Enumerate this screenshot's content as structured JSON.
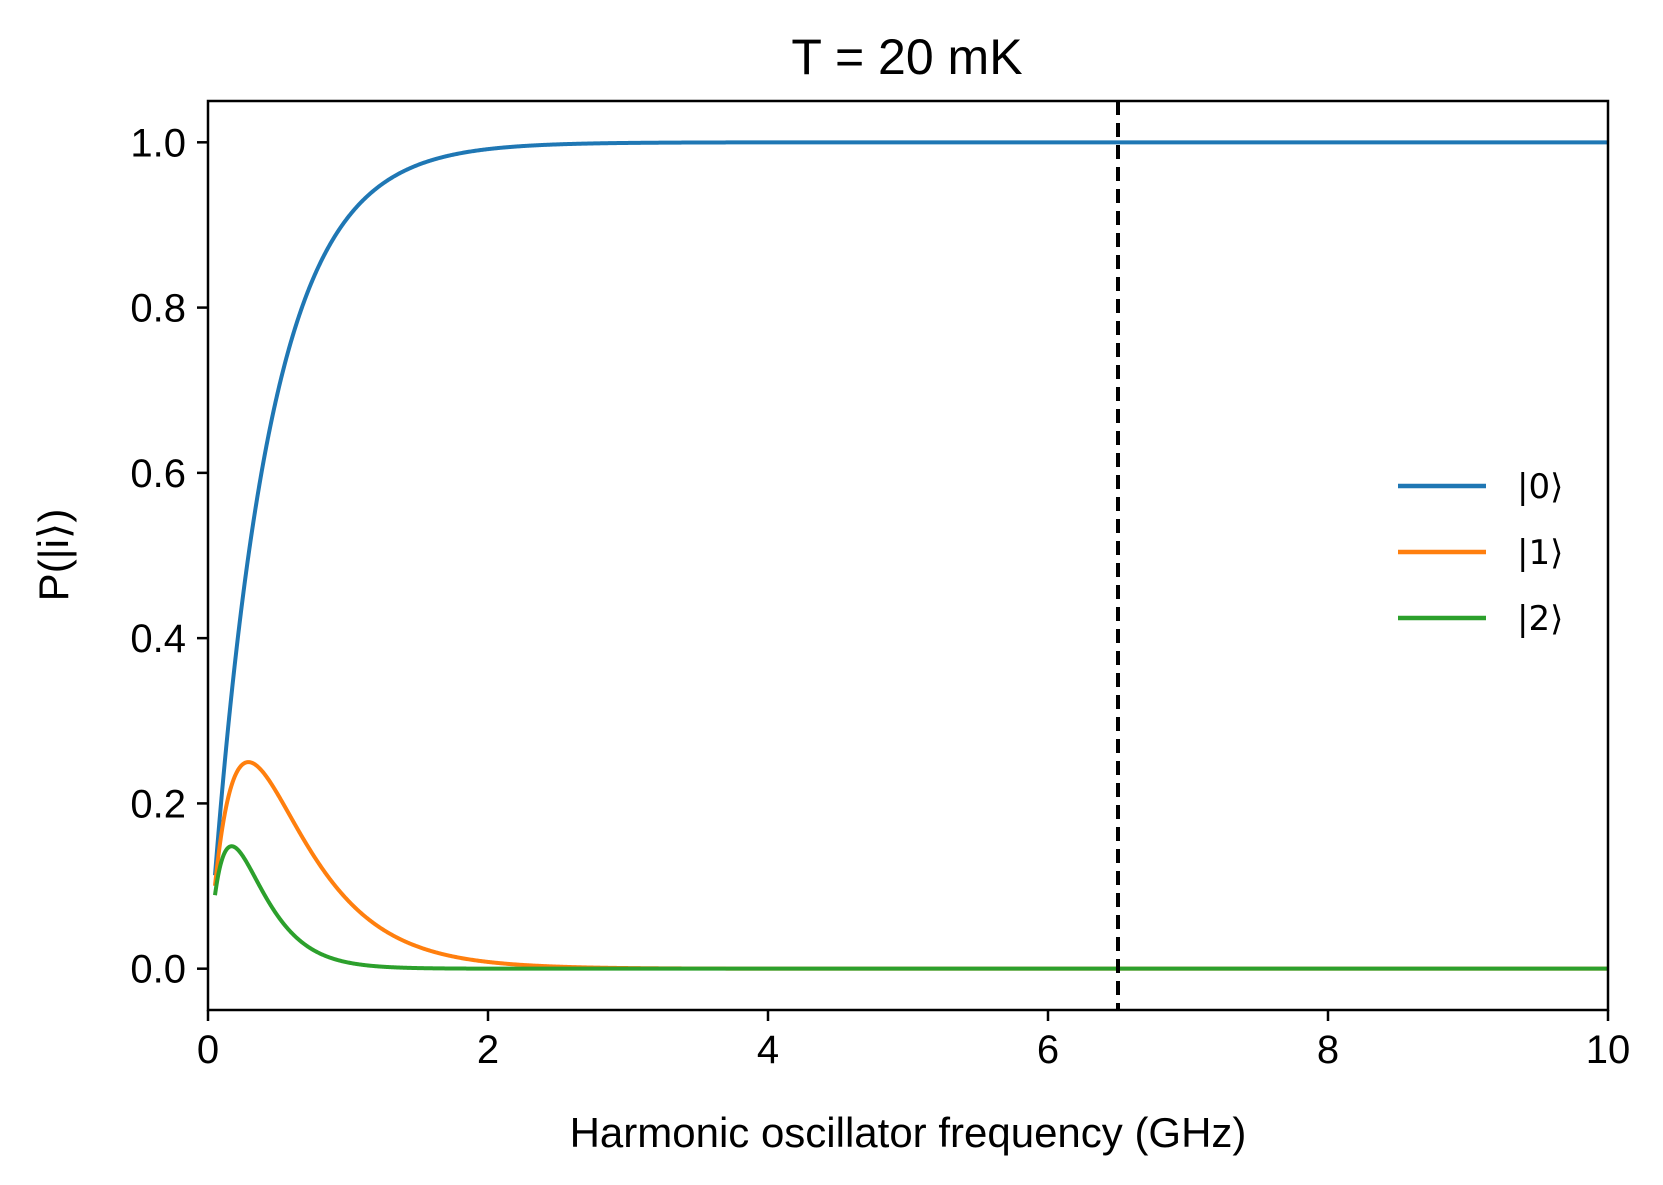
{
  "chart_data": {
    "type": "line",
    "title": "T = 20 mK",
    "xlabel": "Harmonic oscillator frequency (GHz)",
    "ylabel": "P(|i⟩)",
    "xlim": [
      0,
      10
    ],
    "ylim": [
      -0.05,
      1.05
    ],
    "xticks": [
      0,
      2,
      4,
      6,
      8,
      10
    ],
    "xtick_labels": [
      "0",
      "2",
      "4",
      "6",
      "8",
      "10"
    ],
    "yticks": [
      0.0,
      0.2,
      0.4,
      0.6,
      0.8,
      1.0
    ],
    "ytick_labels": [
      "0.0",
      "0.2",
      "0.4",
      "0.6",
      "0.8",
      "1.0"
    ],
    "grid": false,
    "legend_position": "center-right",
    "temperature_mK": 20,
    "vline": {
      "x": 6.5,
      "style": "dashed",
      "color": "#000000"
    },
    "series": [
      {
        "name": "|0⟩",
        "level": 0,
        "color": "#1f77b4",
        "x": [
          0.05,
          0.1,
          0.2,
          0.3,
          0.5,
          0.75,
          1.0,
          1.5,
          2.0,
          3.0,
          4.0,
          6.0,
          8.0,
          10.0
        ],
        "y": [
          0.05,
          0.11,
          0.38,
          0.51,
          0.7,
          0.835,
          0.91,
          0.973,
          0.992,
          0.999,
          1.0,
          1.0,
          1.0,
          1.0
        ]
      },
      {
        "name": "|1⟩",
        "level": 1,
        "color": "#ff7f0e",
        "x": [
          0.05,
          0.1,
          0.2,
          0.3,
          0.5,
          0.75,
          1.0,
          1.5,
          2.0,
          3.0,
          4.0,
          6.0,
          8.0,
          10.0
        ],
        "y": [
          0.05,
          0.1,
          0.236,
          0.25,
          0.21,
          0.14,
          0.08,
          0.025,
          0.008,
          0.001,
          0.0,
          0.0,
          0.0,
          0.0
        ]
      },
      {
        "name": "|2⟩",
        "level": 2,
        "color": "#2ca02c",
        "x": [
          0.05,
          0.1,
          0.15,
          0.2,
          0.3,
          0.5,
          0.75,
          1.0,
          1.5,
          2.0,
          3.0,
          4.0,
          6.0,
          8.0,
          10.0
        ],
        "y": [
          0.05,
          0.12,
          0.145,
          0.148,
          0.13,
          0.07,
          0.025,
          0.007,
          0.001,
          0.0,
          0.0,
          0.0,
          0.0,
          0.0,
          0.0
        ]
      }
    ]
  }
}
